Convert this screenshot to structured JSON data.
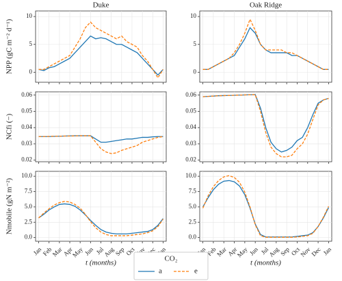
{
  "chart_data": [
    {
      "type": "line",
      "title": "Duke",
      "ylabel": "NPP (gC m⁻² d⁻¹)",
      "legend_title": "CO₂",
      "x": [
        0,
        0.5,
        1,
        1.5,
        2,
        2.5,
        3,
        3.5,
        4,
        4.5,
        5,
        5.5,
        6,
        6.5,
        7,
        7.5,
        8,
        8.5,
        9,
        9.5,
        10,
        10.5,
        11,
        11.5,
        12
      ],
      "xlim": [
        -0.3,
        12.3
      ],
      "xticks": [
        {
          "value": 0,
          "label": "Jan"
        },
        {
          "value": 1,
          "label": "Feb"
        },
        {
          "value": 2,
          "label": "Mar"
        },
        {
          "value": 3,
          "label": "Apr"
        },
        {
          "value": 4,
          "label": "May"
        },
        {
          "value": 5,
          "label": "Jun"
        },
        {
          "value": 6,
          "label": "Jul"
        },
        {
          "value": 7,
          "label": "Aug"
        },
        {
          "value": 8,
          "label": "Sep"
        },
        {
          "value": 9,
          "label": "Oct"
        },
        {
          "value": 10,
          "label": "Nov"
        },
        {
          "value": 11,
          "label": "Dec"
        },
        {
          "value": 12,
          "label": "Jan"
        }
      ],
      "ylim": [
        -1.8,
        11
      ],
      "yticks": [
        0,
        5,
        10
      ],
      "grid": true,
      "series": [
        {
          "name": "a",
          "color": "#1f77b4",
          "dash": false,
          "values": [
            0.5,
            0.3,
            0.8,
            1,
            1.5,
            2,
            2.5,
            3.5,
            4.5,
            5.5,
            6.5,
            6,
            6.2,
            6,
            5.5,
            5,
            5,
            4.5,
            4,
            3.5,
            2.5,
            1.5,
            0.5,
            -0.5,
            0.5
          ]
        },
        {
          "name": "e",
          "color": "#ff7f0e",
          "dash": true,
          "values": [
            0.5,
            0.5,
            1,
            1.5,
            2,
            2.5,
            3,
            4.5,
            6,
            8,
            9,
            8,
            7.5,
            7,
            6.5,
            6,
            6.5,
            5.5,
            5,
            4.5,
            3,
            2,
            0.5,
            -1,
            0.5
          ]
        }
      ]
    },
    {
      "type": "line",
      "title": "Oak Ridge",
      "x": [
        0,
        0.5,
        1,
        1.5,
        2,
        2.5,
        3,
        3.5,
        4,
        4.5,
        5,
        5.5,
        6,
        6.5,
        7,
        7.5,
        8,
        8.5,
        9,
        9.5,
        10,
        10.5,
        11,
        11.5,
        12
      ],
      "xlim": [
        -0.3,
        12.3
      ],
      "xticks": [
        {
          "value": 0,
          "label": "Jan"
        },
        {
          "value": 1,
          "label": "Feb"
        },
        {
          "value": 2,
          "label": "Mar"
        },
        {
          "value": 3,
          "label": "Apr"
        },
        {
          "value": 4,
          "label": "May"
        },
        {
          "value": 5,
          "label": "Jun"
        },
        {
          "value": 6,
          "label": "Jul"
        },
        {
          "value": 7,
          "label": "Aug"
        },
        {
          "value": 8,
          "label": "Sep"
        },
        {
          "value": 9,
          "label": "Oct"
        },
        {
          "value": 10,
          "label": "Nov"
        },
        {
          "value": 11,
          "label": "Dec"
        },
        {
          "value": 12,
          "label": "Jan"
        }
      ],
      "ylim": [
        -1.8,
        11
      ],
      "yticks": [
        0,
        5,
        10
      ],
      "grid": true,
      "series": [
        {
          "name": "a",
          "color": "#1f77b4",
          "dash": false,
          "values": [
            0.5,
            0.5,
            1,
            1.5,
            2,
            2.5,
            3,
            4.5,
            6,
            8,
            7,
            5,
            4,
            3.5,
            3.5,
            3.5,
            3.5,
            3,
            3,
            2.5,
            2,
            1.5,
            1,
            0.5,
            0.5
          ]
        },
        {
          "name": "e",
          "color": "#ff7f0e",
          "dash": true,
          "values": [
            0.5,
            0.5,
            1,
            1.5,
            2,
            2.5,
            3.5,
            5,
            7,
            9.5,
            7.5,
            5,
            4,
            4,
            4,
            4,
            3.5,
            3.5,
            3,
            2.5,
            2,
            1.5,
            1,
            0.5,
            0.5
          ]
        }
      ]
    },
    {
      "type": "line",
      "ylabel": "NCfi (−)",
      "x": [
        0,
        0.5,
        1,
        1.5,
        2,
        2.5,
        3,
        3.5,
        4,
        4.5,
        5,
        5.5,
        6,
        6.5,
        7,
        7.5,
        8,
        8.5,
        9,
        9.5,
        10,
        10.5,
        11,
        11.5,
        12
      ],
      "xlim": [
        -0.3,
        12.3
      ],
      "xticks": [
        {
          "value": 0,
          "label": "Jan"
        },
        {
          "value": 1,
          "label": "Feb"
        },
        {
          "value": 2,
          "label": "Mar"
        },
        {
          "value": 3,
          "label": "Apr"
        },
        {
          "value": 4,
          "label": "May"
        },
        {
          "value": 5,
          "label": "Jun"
        },
        {
          "value": 6,
          "label": "Jul"
        },
        {
          "value": 7,
          "label": "Aug"
        },
        {
          "value": 8,
          "label": "Sep"
        },
        {
          "value": 9,
          "label": "Oct"
        },
        {
          "value": 10,
          "label": "Nov"
        },
        {
          "value": 11,
          "label": "Dec"
        },
        {
          "value": 12,
          "label": "Jan"
        }
      ],
      "ylim": [
        0.019,
        0.062
      ],
      "yticks": [
        0.02,
        0.03,
        0.04,
        0.05,
        0.06
      ],
      "grid": true,
      "series": [
        {
          "name": "a",
          "color": "#1f77b4",
          "dash": false,
          "values": [
            0.0345,
            0.0345,
            0.0345,
            0.0346,
            0.0347,
            0.0348,
            0.0349,
            0.035,
            0.035,
            0.035,
            0.035,
            0.033,
            0.031,
            0.031,
            0.0315,
            0.032,
            0.0325,
            0.033,
            0.033,
            0.0335,
            0.034,
            0.034,
            0.0343,
            0.0345,
            0.0345
          ]
        },
        {
          "name": "e",
          "color": "#ff7f0e",
          "dash": true,
          "values": [
            0.0345,
            0.0345,
            0.0346,
            0.0347,
            0.0347,
            0.0348,
            0.0348,
            0.0349,
            0.035,
            0.035,
            0.035,
            0.031,
            0.027,
            0.025,
            0.024,
            0.0245,
            0.026,
            0.027,
            0.028,
            0.029,
            0.031,
            0.032,
            0.033,
            0.034,
            0.0345
          ]
        }
      ]
    },
    {
      "type": "line",
      "x": [
        0,
        0.5,
        1,
        1.5,
        2,
        2.5,
        3,
        3.5,
        4,
        4.5,
        5,
        5.5,
        6,
        6.5,
        7,
        7.5,
        8,
        8.5,
        9,
        9.5,
        10,
        10.5,
        11,
        11.5,
        12
      ],
      "xlim": [
        -0.3,
        12.3
      ],
      "xticks": [
        {
          "value": 0,
          "label": "Jan"
        },
        {
          "value": 1,
          "label": "Feb"
        },
        {
          "value": 2,
          "label": "Mar"
        },
        {
          "value": 3,
          "label": "Apr"
        },
        {
          "value": 4,
          "label": "May"
        },
        {
          "value": 5,
          "label": "Jun"
        },
        {
          "value": 6,
          "label": "Jul"
        },
        {
          "value": 7,
          "label": "Aug"
        },
        {
          "value": 8,
          "label": "Sep"
        },
        {
          "value": 9,
          "label": "Oct"
        },
        {
          "value": 10,
          "label": "Nov"
        },
        {
          "value": 11,
          "label": "Dec"
        },
        {
          "value": 12,
          "label": "Jan"
        }
      ],
      "ylim": [
        0.019,
        0.062
      ],
      "yticks": [
        0.02,
        0.03,
        0.04,
        0.05,
        0.06
      ],
      "grid": true,
      "series": [
        {
          "name": "a",
          "color": "#1f77b4",
          "dash": false,
          "values": [
            0.059,
            0.0592,
            0.0594,
            0.0596,
            0.0597,
            0.0598,
            0.0599,
            0.06,
            0.0601,
            0.0602,
            0.0603,
            0.052,
            0.04,
            0.031,
            0.027,
            0.025,
            0.026,
            0.028,
            0.032,
            0.034,
            0.04,
            0.048,
            0.055,
            0.057,
            0.058
          ]
        },
        {
          "name": "e",
          "color": "#ff7f0e",
          "dash": true,
          "values": [
            0.059,
            0.0592,
            0.0594,
            0.0596,
            0.0597,
            0.0598,
            0.0599,
            0.06,
            0.0601,
            0.0602,
            0.0603,
            0.05,
            0.037,
            0.028,
            0.024,
            0.022,
            0.022,
            0.023,
            0.027,
            0.03,
            0.036,
            0.045,
            0.054,
            0.057,
            0.058
          ]
        }
      ]
    },
    {
      "type": "line",
      "ylabel": "Nmobile (gN m⁻²)",
      "xlabel": "t (months)",
      "x": [
        0,
        0.5,
        1,
        1.5,
        2,
        2.5,
        3,
        3.5,
        4,
        4.5,
        5,
        5.5,
        6,
        6.5,
        7,
        7.5,
        8,
        8.5,
        9,
        9.5,
        10,
        10.5,
        11,
        11.5,
        12
      ],
      "xlim": [
        -0.3,
        12.3
      ],
      "xticks": [
        {
          "value": 0,
          "label": "Jan"
        },
        {
          "value": 1,
          "label": "Feb"
        },
        {
          "value": 2,
          "label": "Mar"
        },
        {
          "value": 3,
          "label": "Apr"
        },
        {
          "value": 4,
          "label": "May"
        },
        {
          "value": 5,
          "label": "Jun"
        },
        {
          "value": 6,
          "label": "Jul"
        },
        {
          "value": 7,
          "label": "Aug"
        },
        {
          "value": 8,
          "label": "Sep"
        },
        {
          "value": 9,
          "label": "Oct"
        },
        {
          "value": 10,
          "label": "Nov"
        },
        {
          "value": 11,
          "label": "Dec"
        },
        {
          "value": 12,
          "label": "Jan"
        }
      ],
      "ylim": [
        -0.6,
        10.8
      ],
      "yticks": [
        {
          "value": 0,
          "label": "0.0"
        },
        2.5,
        {
          "value": 5,
          "label": "5.0"
        },
        7.5,
        {
          "value": 10,
          "label": "10.0"
        }
      ],
      "grid": true,
      "series": [
        {
          "name": "a",
          "color": "#1f77b4",
          "dash": false,
          "values": [
            3.2,
            3.8,
            4.5,
            5,
            5.4,
            5.5,
            5.4,
            5.1,
            4.5,
            3.7,
            2.8,
            2,
            1.3,
            0.9,
            0.7,
            0.6,
            0.6,
            0.6,
            0.7,
            0.8,
            0.9,
            1,
            1.3,
            2,
            3.1
          ]
        },
        {
          "name": "e",
          "color": "#ff7f0e",
          "dash": true,
          "values": [
            3.2,
            4,
            4.7,
            5.3,
            5.7,
            5.9,
            5.8,
            5.4,
            4.8,
            3.8,
            2.6,
            1.6,
            0.9,
            0.5,
            0.3,
            0.3,
            0.3,
            0.3,
            0.4,
            0.5,
            0.6,
            0.8,
            1.1,
            1.8,
            3
          ]
        }
      ]
    },
    {
      "type": "line",
      "xlabel": "t (months)",
      "x": [
        0,
        0.5,
        1,
        1.5,
        2,
        2.5,
        3,
        3.5,
        4,
        4.5,
        5,
        5.5,
        6,
        6.5,
        7,
        7.5,
        8,
        8.5,
        9,
        9.5,
        10,
        10.5,
        11,
        11.5,
        12
      ],
      "xlim": [
        -0.3,
        12.3
      ],
      "xticks": [
        {
          "value": 0,
          "label": "Jan"
        },
        {
          "value": 1,
          "label": "Feb"
        },
        {
          "value": 2,
          "label": "Mar"
        },
        {
          "value": 3,
          "label": "Apr"
        },
        {
          "value": 4,
          "label": "May"
        },
        {
          "value": 5,
          "label": "Jun"
        },
        {
          "value": 6,
          "label": "Jul"
        },
        {
          "value": 7,
          "label": "Aug"
        },
        {
          "value": 8,
          "label": "Sep"
        },
        {
          "value": 9,
          "label": "Oct"
        },
        {
          "value": 10,
          "label": "Nov"
        },
        {
          "value": 11,
          "label": "Dec"
        },
        {
          "value": 12,
          "label": "Jan"
        }
      ],
      "ylim": [
        -0.6,
        10.8
      ],
      "yticks": [
        {
          "value": 0,
          "label": "0.0"
        },
        2.5,
        {
          "value": 5,
          "label": "5.0"
        },
        7.5,
        {
          "value": 10,
          "label": "10.0"
        }
      ],
      "grid": true,
      "series": [
        {
          "name": "a",
          "color": "#1f77b4",
          "dash": false,
          "values": [
            5,
            6.5,
            7.8,
            8.7,
            9.2,
            9.3,
            9.1,
            8.4,
            7,
            4.8,
            2.2,
            0.5,
            0.1,
            0.1,
            0.1,
            0.1,
            0.1,
            0.1,
            0.2,
            0.3,
            0.4,
            0.8,
            1.8,
            3.2,
            4.9
          ]
        },
        {
          "name": "e",
          "color": "#ff7f0e",
          "dash": true,
          "values": [
            4.8,
            6.8,
            8.3,
            9.3,
            9.9,
            10.1,
            9.8,
            9,
            7.4,
            5,
            2.1,
            0.3,
            0.05,
            0.05,
            0.05,
            0.05,
            0.05,
            0.05,
            0.1,
            0.2,
            0.3,
            0.7,
            1.8,
            3.3,
            5.1
          ]
        }
      ]
    }
  ]
}
